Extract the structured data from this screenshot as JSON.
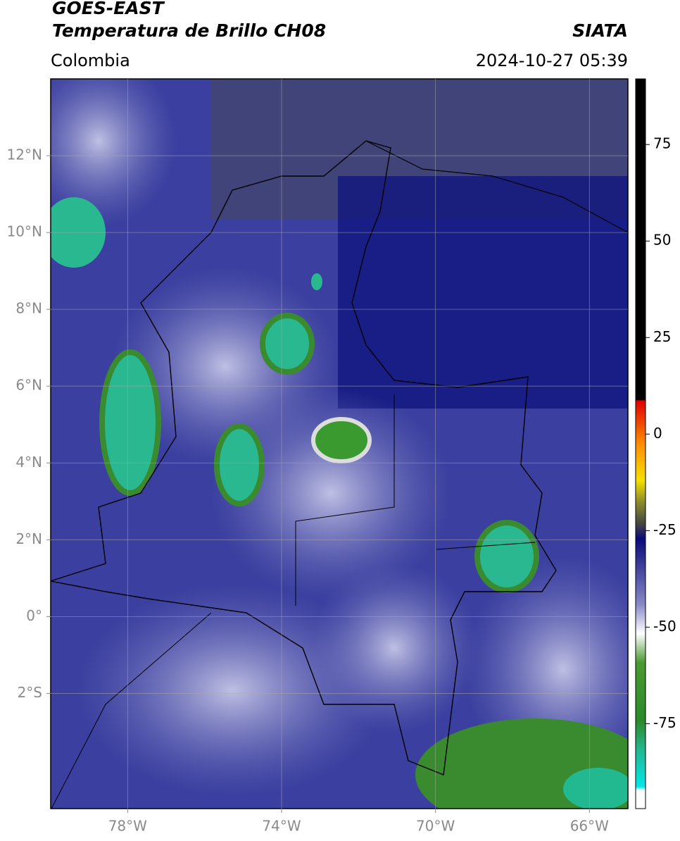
{
  "header": {
    "title_line1": "GOES-EAST",
    "title_line2": "Temperatura de Brillo CH08",
    "region": "Colombia",
    "source": "SIATA",
    "datetime": "2024-10-27 05:39"
  },
  "map": {
    "lonlim": [
      -80,
      -65
    ],
    "latlim": [
      -5,
      14
    ],
    "xticks": [
      {
        "value": -78,
        "label": "78°W"
      },
      {
        "value": -74,
        "label": "74°W"
      },
      {
        "value": -70,
        "label": "70°W"
      },
      {
        "value": -66,
        "label": "66°W"
      }
    ],
    "yticks": [
      {
        "value": 12,
        "label": "12°N"
      },
      {
        "value": 10,
        "label": "10°N"
      },
      {
        "value": 8,
        "label": "8°N"
      },
      {
        "value": 6,
        "label": "6°N"
      },
      {
        "value": 4,
        "label": "4°N"
      },
      {
        "value": 2,
        "label": "2°N"
      },
      {
        "value": 0,
        "label": "0°"
      },
      {
        "value": -2,
        "label": "2°S"
      }
    ]
  },
  "colorbar": {
    "lim": [
      -97,
      92
    ],
    "ticks": [
      75,
      50,
      25,
      0,
      -25,
      -50,
      -75
    ]
  }
}
